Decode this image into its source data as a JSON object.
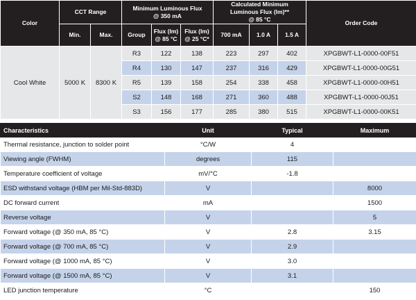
{
  "top_table": {
    "headers": {
      "color": "Color",
      "cct_range": "CCT Range",
      "min_flux_line1": "Minimum Luminous Flux",
      "min_flux_line2": "@ 350 mA",
      "calc_flux_line1": "Calculated Minimum",
      "calc_flux_line2": "Luminous Flux (lm)**",
      "calc_flux_line3": "@ 85 °C",
      "order_code": "Order Code",
      "min": "Min.",
      "max": "Max.",
      "group": "Group",
      "flux85_line1": "Flux (lm)",
      "flux85_line2": "@ 85 °C",
      "flux25_line1": "Flux (lm)",
      "flux25_line2": "@ 25 °C*",
      "i700": "700 mA",
      "i1000": "1.0 A",
      "i1500": "1.5 A"
    },
    "color_value": "Cool White",
    "cct_min": "5000 K",
    "cct_max": "8300 K",
    "rows": [
      {
        "group": "R3",
        "flux85": "122",
        "flux25": "138",
        "ma700": "223",
        "a1": "297",
        "a15": "402",
        "code": "XPGBWT-L1-0000-00F51"
      },
      {
        "group": "R4",
        "flux85": "130",
        "flux25": "147",
        "ma700": "237",
        "a1": "316",
        "a15": "429",
        "code": "XPGBWT-L1-0000-00G51"
      },
      {
        "group": "R5",
        "flux85": "139",
        "flux25": "158",
        "ma700": "254",
        "a1": "338",
        "a15": "458",
        "code": "XPGBWT-L1-0000-00H51"
      },
      {
        "group": "S2",
        "flux85": "148",
        "flux25": "168",
        "ma700": "271",
        "a1": "360",
        "a15": "488",
        "code": "XPGBWT-L1-0000-00J51"
      },
      {
        "group": "S3",
        "flux85": "156",
        "flux25": "177",
        "ma700": "285",
        "a1": "380",
        "a15": "515",
        "code": "XPGBWT-L1-0000-00K51"
      }
    ]
  },
  "char_table": {
    "headers": {
      "characteristics": "Characteristics",
      "unit": "Unit",
      "typical": "Typical",
      "maximum": "Maximum"
    },
    "rows": [
      {
        "name": "Thermal resistance, junction to solder point",
        "unit": "°C/W",
        "typical": "4",
        "maximum": ""
      },
      {
        "name": "Viewing angle (FWHM)",
        "unit": "degrees",
        "typical": "115",
        "maximum": ""
      },
      {
        "name": "Temperature coefficient of voltage",
        "unit": "mV/°C",
        "typical": "-1.8",
        "maximum": ""
      },
      {
        "name": "ESD withstand voltage (HBM per Mil-Std-883D)",
        "unit": "V",
        "typical": "",
        "maximum": "8000"
      },
      {
        "name": "DC forward current",
        "unit": "mA",
        "typical": "",
        "maximum": "1500"
      },
      {
        "name": "Reverse voltage",
        "unit": "V",
        "typical": "",
        "maximum": "5"
      },
      {
        "name": "Forward voltage (@ 350 mA, 85 °C)",
        "unit": "V",
        "typical": "2.8",
        "maximum": "3.15"
      },
      {
        "name": "Forward voltage (@ 700 mA, 85 °C)",
        "unit": "V",
        "typical": "2.9",
        "maximum": ""
      },
      {
        "name": "Forward voltage (@ 1000 mA, 85 °C)",
        "unit": "V",
        "typical": "3.0",
        "maximum": ""
      },
      {
        "name": "Forward voltage (@ 1500 mA, 85 °C)",
        "unit": "V",
        "typical": "3.1",
        "maximum": ""
      },
      {
        "name": "LED junction temperature",
        "unit": "°C",
        "typical": "",
        "maximum": "150"
      }
    ]
  },
  "colors": {
    "header_bg": "#231f20",
    "row_blue": "#c5d3ea",
    "row_grey": "#e6e7e8"
  }
}
